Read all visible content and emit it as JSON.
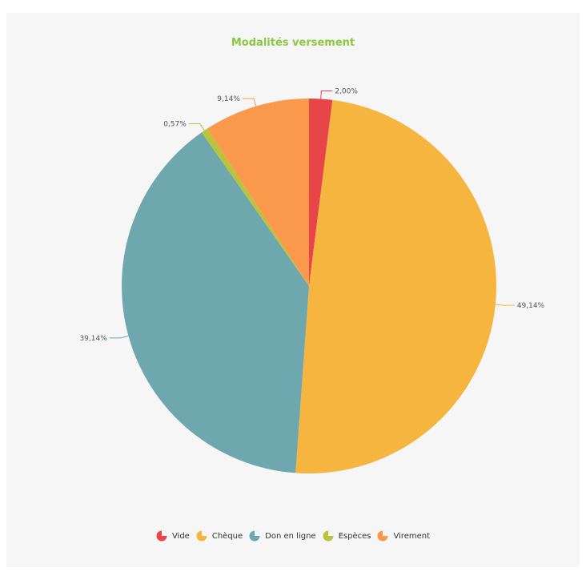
{
  "chart_data": {
    "type": "pie",
    "title": "Modalités versement",
    "title_color": "#8dc63f",
    "categories": [
      "Vide",
      "Chèque",
      "Don en ligne",
      "Espèces",
      "Virement"
    ],
    "values": [
      2.0,
      49.14,
      39.14,
      0.57,
      9.14
    ],
    "labels": [
      "2,00%",
      "49,14%",
      "39,14%",
      "0,57%",
      "9,14%"
    ],
    "colors": [
      "#e84549",
      "#f5b53e",
      "#6ea8ae",
      "#b9c43d",
      "#fa984b"
    ],
    "legend_position": "bottom"
  }
}
